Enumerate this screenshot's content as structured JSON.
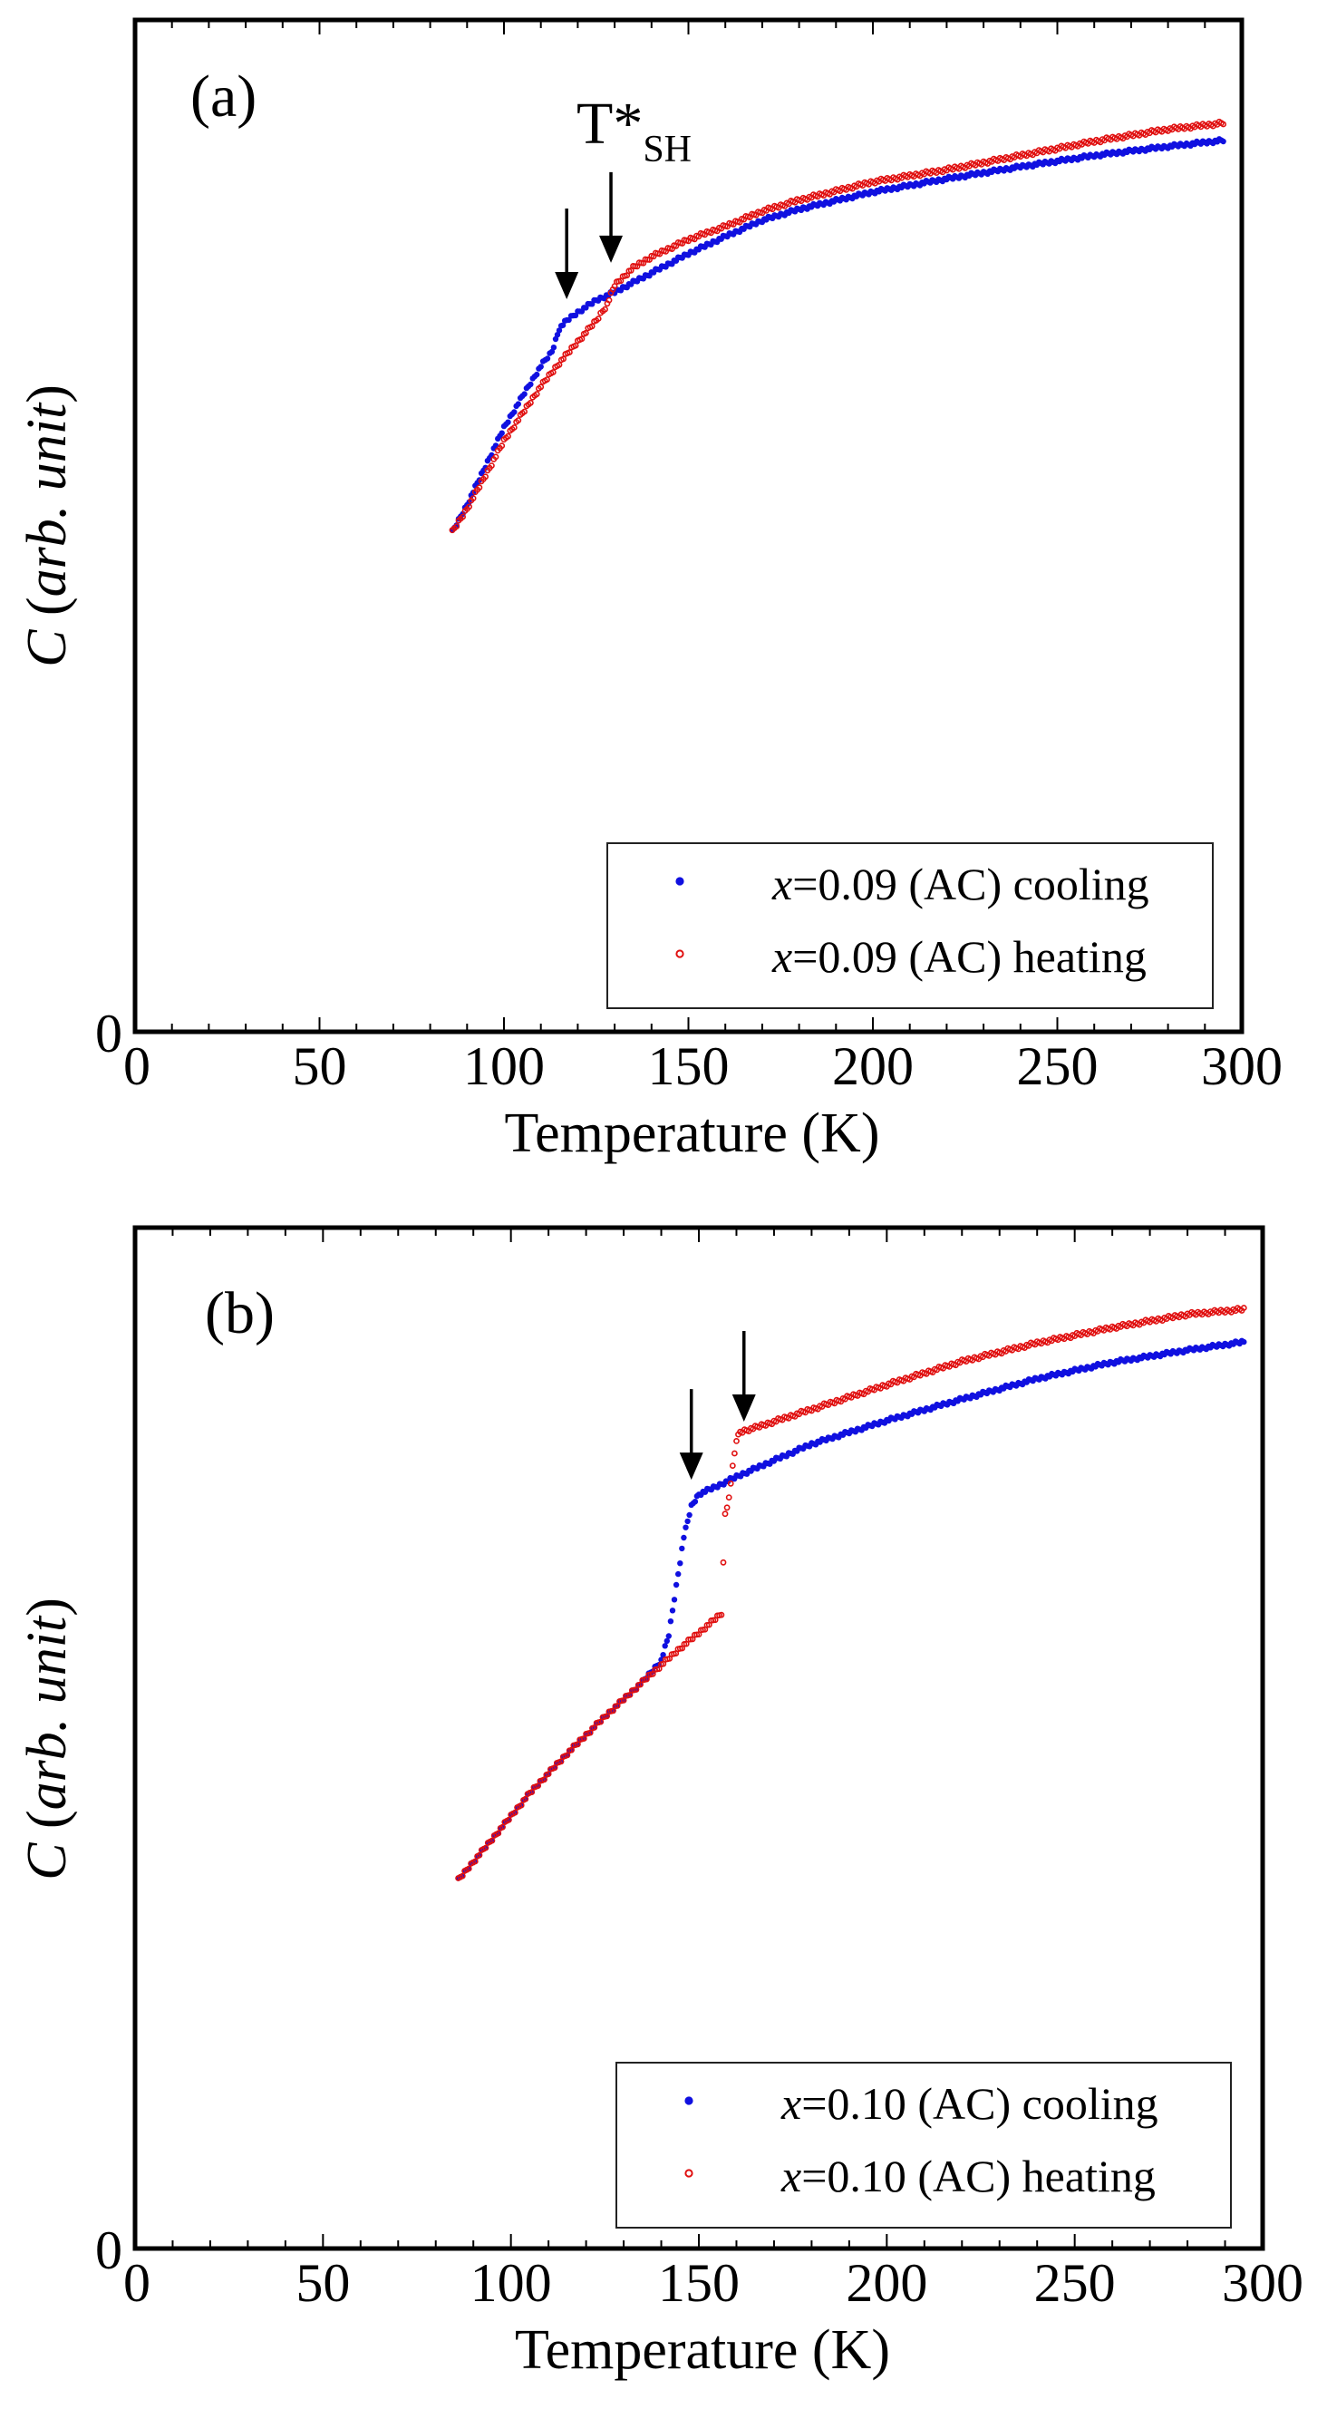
{
  "chart_data": [
    {
      "type": "scatter",
      "panel_label": "(a)",
      "xlabel": "Temperature (K)",
      "ylabel_italic": "C",
      "ylabel_rest": " (",
      "ylabel_unit": "arb. unit",
      "ylabel_close": ")",
      "xlim": [
        0,
        300
      ],
      "ylim": [
        0,
        1
      ],
      "x_ticks": [
        0,
        50,
        100,
        150,
        200,
        250,
        300
      ],
      "y_tick_labels": [
        "0"
      ],
      "grid": false,
      "legend_position": "bottom-right",
      "annotation": {
        "main": "T*",
        "sub": "SH"
      },
      "arrows": [
        {
          "x": 117,
          "y_tip": 0.724
        },
        {
          "x": 129,
          "y_tip": 0.76
        }
      ],
      "series": [
        {
          "name": "x=0.09 (AC) cooling",
          "legend_var": "x",
          "legend_text": "=0.09 (AC) cooling",
          "color": "#1010e0",
          "marker": "filled-dot",
          "x": [
            86,
            90,
            95,
            100,
            105,
            110,
            113,
            115,
            117,
            120,
            125,
            130,
            140,
            150,
            160,
            170,
            180,
            200,
            220,
            240,
            260,
            280,
            295
          ],
          "y": [
            0.494,
            0.521,
            0.559,
            0.597,
            0.628,
            0.658,
            0.672,
            0.695,
            0.703,
            0.711,
            0.723,
            0.731,
            0.75,
            0.769,
            0.786,
            0.802,
            0.813,
            0.83,
            0.843,
            0.855,
            0.866,
            0.875,
            0.881
          ]
        },
        {
          "name": "x=0.09 (AC) heating",
          "legend_var": "x",
          "legend_text": "=0.09 (AC) heating",
          "color": "#e01010",
          "marker": "open-circle",
          "x": [
            86,
            90,
            95,
            100,
            105,
            110,
            115,
            120,
            125,
            128,
            130,
            135,
            140,
            150,
            160,
            170,
            180,
            200,
            220,
            240,
            260,
            280,
            295
          ],
          "y": [
            0.494,
            0.517,
            0.55,
            0.584,
            0.611,
            0.638,
            0.661,
            0.682,
            0.703,
            0.719,
            0.738,
            0.755,
            0.766,
            0.783,
            0.796,
            0.811,
            0.822,
            0.84,
            0.852,
            0.866,
            0.88,
            0.892,
            0.898
          ]
        }
      ]
    },
    {
      "type": "scatter",
      "panel_label": "(b)",
      "xlabel": "Temperature (K)",
      "ylabel_italic": "C",
      "ylabel_rest": " (",
      "ylabel_unit": "arb. unit",
      "ylabel_close": ")",
      "xlim": [
        0,
        300
      ],
      "ylim": [
        0,
        1
      ],
      "x_ticks": [
        0,
        50,
        100,
        150,
        200,
        250,
        300
      ],
      "y_tick_labels": [
        "0"
      ],
      "grid": false,
      "legend_position": "bottom-right",
      "arrows": [
        {
          "x": 148,
          "y_tip": 0.753
        },
        {
          "x": 162,
          "y_tip": 0.81
        }
      ],
      "series": [
        {
          "name": "x=0.10 (AC) cooling",
          "legend_var": "x",
          "legend_text": "=0.10 (AC) cooling",
          "color": "#1010e0",
          "marker": "filled-dot",
          "x": [
            86,
            95,
            105,
            115,
            125,
            135,
            140,
            142,
            144,
            146,
            148,
            150,
            155,
            160,
            170,
            180,
            200,
            220,
            240,
            260,
            280,
            295
          ],
          "y": [
            0.361,
            0.401,
            0.446,
            0.485,
            0.521,
            0.555,
            0.576,
            0.601,
            0.649,
            0.697,
            0.727,
            0.739,
            0.747,
            0.756,
            0.772,
            0.788,
            0.811,
            0.832,
            0.852,
            0.868,
            0.88,
            0.888
          ]
        },
        {
          "name": "x=0.10 (AC) heating",
          "legend_var": "x",
          "legend_text": "=0.10 (AC) heating",
          "color": "#e01010",
          "marker": "open-circle",
          "x": [
            86,
            95,
            105,
            115,
            125,
            135,
            145,
            150,
            156,
            157,
            158,
            159,
            160,
            161,
            165,
            170,
            180,
            200,
            220,
            240,
            260,
            280,
            295
          ],
          "y": [
            0.361,
            0.401,
            0.446,
            0.485,
            0.521,
            0.555,
            0.588,
            0.603,
            0.622,
            0.72,
            0.735,
            0.765,
            0.792,
            0.8,
            0.804,
            0.81,
            0.822,
            0.846,
            0.869,
            0.887,
            0.902,
            0.915,
            0.92
          ]
        }
      ]
    }
  ]
}
